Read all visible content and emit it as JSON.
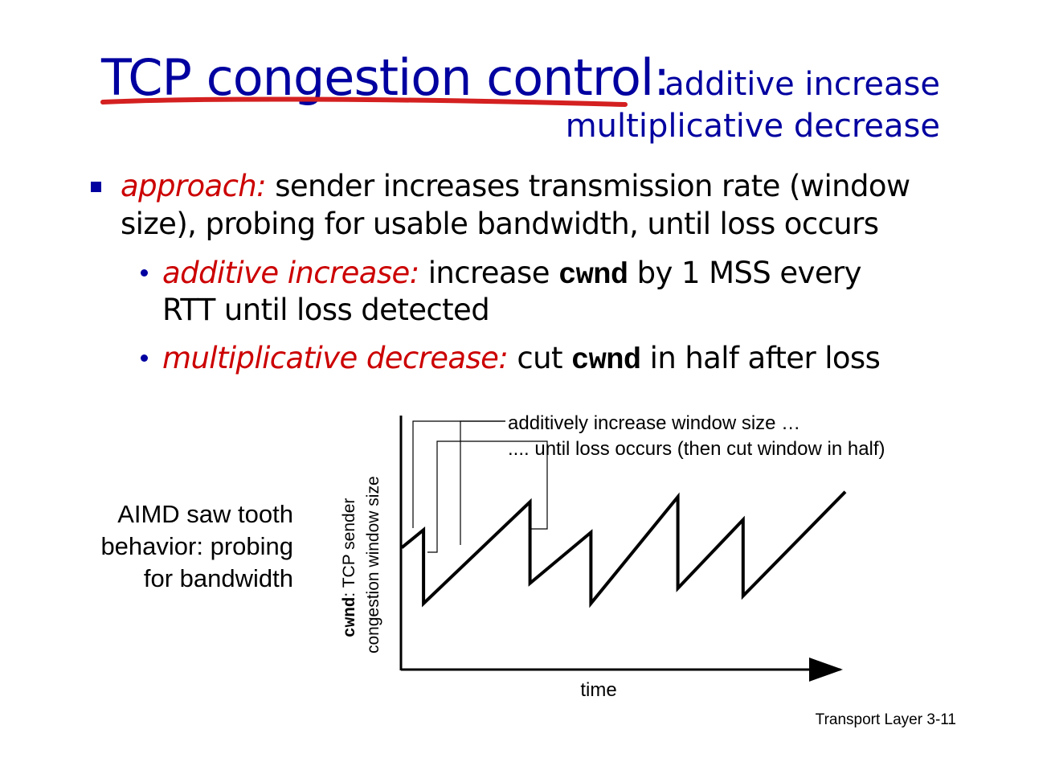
{
  "title": {
    "main": "TCP congestion control:",
    "sub_line1": "additive increase",
    "sub_line2": "multiplicative decrease",
    "underline_color": "#d42020",
    "title_color": "#0000a0"
  },
  "bullets": {
    "approach_label": "approach:",
    "approach_text_line1": "sender increases transmission rate (window",
    "approach_text_line2": "size), probing for usable bandwidth, until loss occurs",
    "additive_label": "additive increase:",
    "additive_pre": "increase",
    "additive_code": "cwnd",
    "additive_post": "by 1 MSS every",
    "additive_line2": "RTT until loss detected",
    "multiplicative_label": "multiplicative decrease:",
    "multiplicative_pre": "cut",
    "multiplicative_code": "cwnd",
    "multiplicative_post": "in half after loss"
  },
  "aimd_caption": {
    "line1": "AIMD saw tooth",
    "line2": "behavior: probing",
    "line3": "for bandwidth"
  },
  "chart_data": {
    "type": "line",
    "xlabel": "time",
    "ylabel_code": "cwnd",
    "ylabel_line1_rest": ": TCP sender",
    "ylabel_line2": "congestion window size",
    "annotations": [
      "additively increase window size …",
      ".... until loss occurs (then cut window in half)"
    ],
    "points": [
      [
        0.0,
        0.48
      ],
      [
        0.5,
        0.55
      ],
      [
        0.5,
        0.26
      ],
      [
        2.95,
        0.66
      ],
      [
        2.95,
        0.34
      ],
      [
        4.35,
        0.54
      ],
      [
        4.35,
        0.26
      ],
      [
        6.35,
        0.68
      ],
      [
        6.35,
        0.32
      ],
      [
        7.85,
        0.59
      ],
      [
        7.85,
        0.29
      ],
      [
        10.2,
        0.7
      ]
    ],
    "xlim": [
      0,
      10.2
    ],
    "ylim": [
      0,
      1
    ],
    "grid": false,
    "line_color": "#000000"
  },
  "footer": {
    "label": "Transport Layer",
    "page": "3-11"
  }
}
